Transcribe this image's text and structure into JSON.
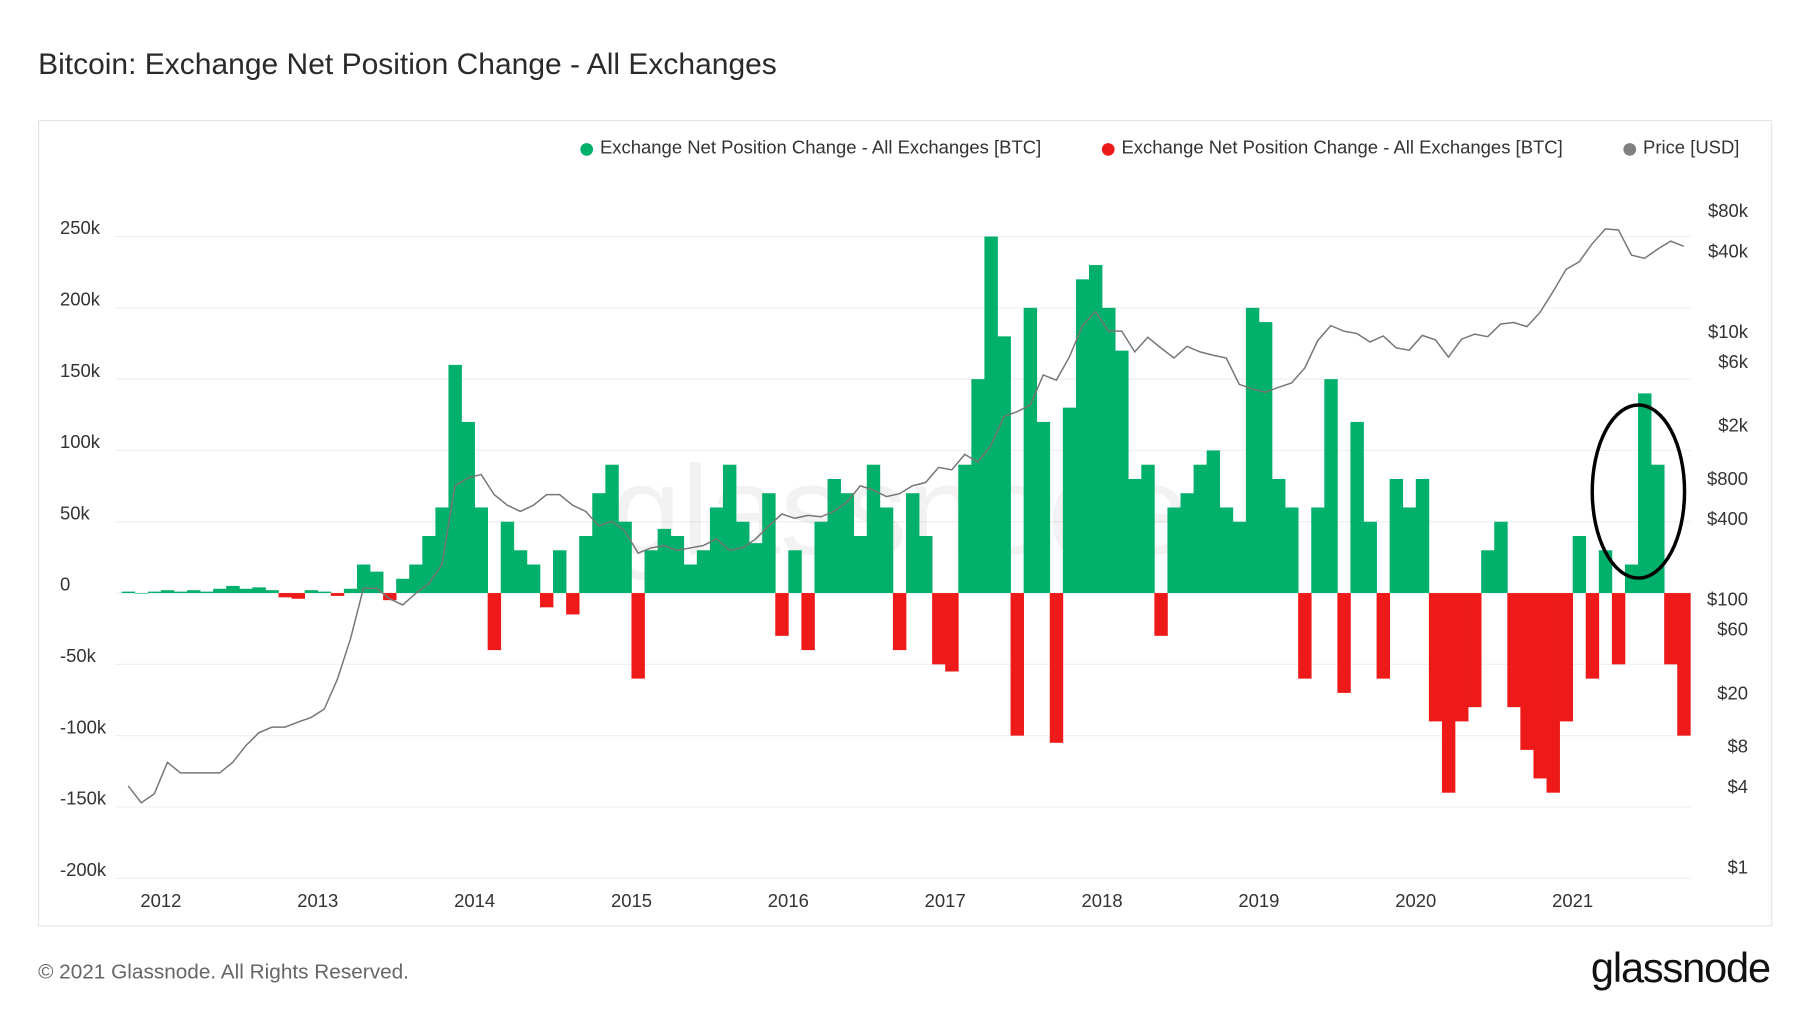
{
  "title": "Bitcoin: Exchange Net Position Change - All Exchanges",
  "footer": "© 2021 Glassnode. All Rights Reserved.",
  "brand": "glassnode",
  "watermark": "glassnode",
  "colors": {
    "positive": "#00b06b",
    "negative": "#ee1a1a",
    "price": "#777777",
    "annotation": "#000000"
  },
  "chart_data": {
    "type": "bar",
    "title": "Bitcoin: Exchange Net Position Change - All Exchanges",
    "legend": [
      {
        "name": "Exchange Net Position Change - All Exchanges [BTC]",
        "color": "#00b06b"
      },
      {
        "name": "Exchange Net Position Change - All Exchanges [BTC]",
        "color": "#ee1a1a"
      },
      {
        "name": "Price [USD]",
        "color": "#808080"
      }
    ],
    "legend_placement": "top-right",
    "x_start": "2011-10",
    "x_interval": "month",
    "x_ticks": [
      "2012",
      "2013",
      "2014",
      "2015",
      "2016",
      "2017",
      "2018",
      "2019",
      "2020",
      "2021"
    ],
    "y_left_ticks": [
      "250k",
      "200k",
      "150k",
      "100k",
      "50k",
      "0",
      "-50k",
      "-100k",
      "-150k",
      "-200k"
    ],
    "y_left_range": [
      -200000,
      250000
    ],
    "y_right_scale": "log",
    "y_right_ticks": [
      "$80k",
      "$40k",
      "$10k",
      "$6k",
      "$2k",
      "$800",
      "$400",
      "$100",
      "$60",
      "$20",
      "$8",
      "$4",
      "$1"
    ],
    "grid": true,
    "net_position_change_k_btc": [
      1,
      0,
      1,
      2,
      1,
      2,
      1,
      3,
      5,
      3,
      4,
      2,
      -3,
      -4,
      2,
      1,
      -2,
      3,
      20,
      15,
      -5,
      10,
      20,
      40,
      60,
      160,
      120,
      60,
      -40,
      50,
      30,
      20,
      -10,
      30,
      -15,
      40,
      70,
      90,
      50,
      -60,
      30,
      45,
      40,
      20,
      30,
      60,
      90,
      50,
      35,
      70,
      -30,
      30,
      -40,
      50,
      80,
      70,
      40,
      90,
      60,
      -40,
      70,
      40,
      -50,
      -55,
      90,
      150,
      250,
      180,
      -100,
      200,
      120,
      -105,
      130,
      220,
      230,
      200,
      170,
      80,
      90,
      -30,
      60,
      70,
      90,
      100,
      60,
      50,
      200,
      190,
      80,
      60,
      -60,
      60,
      150,
      -70,
      120,
      50,
      -60,
      80,
      60,
      80,
      -90,
      -140,
      -90,
      -80,
      30,
      50,
      -80,
      -110,
      -130,
      -140,
      -90,
      40,
      -60,
      30,
      -50,
      20,
      140,
      90,
      -50,
      -100
    ],
    "price_usd": [
      4,
      3,
      3.5,
      6,
      5,
      5,
      5,
      5,
      6,
      8,
      10,
      11,
      11,
      12,
      13,
      15,
      25,
      50,
      120,
      120,
      100,
      90,
      110,
      130,
      180,
      700,
      800,
      850,
      600,
      500,
      450,
      500,
      600,
      600,
      500,
      450,
      350,
      380,
      320,
      220,
      240,
      250,
      230,
      240,
      250,
      280,
      230,
      240,
      280,
      350,
      430,
      400,
      420,
      410,
      450,
      530,
      700,
      650,
      580,
      610,
      700,
      740,
      960,
      920,
      1200,
      1050,
      1400,
      2300,
      2500,
      2800,
      4700,
      4300,
      6400,
      11000,
      14000,
      10000,
      10000,
      7000,
      9000,
      7500,
      6300,
      7700,
      7000,
      6600,
      6300,
      4000,
      3700,
      3500,
      3800,
      4100,
      5300,
      8500,
      11000,
      10000,
      9600,
      8300,
      9200,
      7500,
      7200,
      9300,
      8600,
      6400,
      8700,
      9500,
      9100,
      11300,
      11600,
      10800,
      13800,
      19700,
      29000,
      33000,
      45000,
      58000,
      57000,
      37000,
      35000,
      41000,
      47000,
      43000
    ],
    "annotation": "circled peak, mid-2021"
  }
}
